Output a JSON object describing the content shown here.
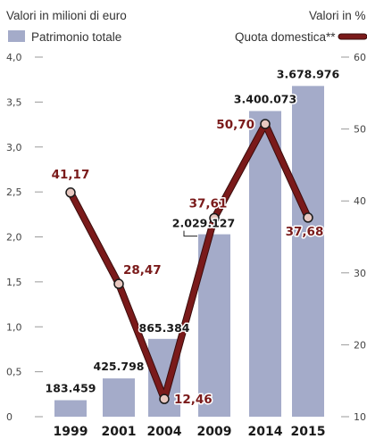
{
  "header": {
    "left_unit": "Valori in milioni di euro",
    "right_unit": "Valori in %"
  },
  "legend": {
    "bar_label": "Patrimonio totale",
    "line_label": "Quota domestica**"
  },
  "colors": {
    "bar": "#a4abc9",
    "line": "#7a1a1a",
    "line_outline": "#3a0c0c",
    "point_fill": "#e8c8c0",
    "line_label": "#7a1a1a"
  },
  "chart_data": {
    "type": "bar+line",
    "categories": [
      "1999",
      "2001",
      "2004",
      "2009",
      "2014",
      "2015"
    ],
    "left_axis": {
      "min": 0,
      "max": 4.0,
      "ticks": [
        0,
        0.5,
        1.0,
        1.5,
        2.0,
        2.5,
        3.0,
        3.5,
        4.0
      ],
      "tick_labels": [
        "0",
        "0,5",
        "1,0",
        "1,5",
        "2,0",
        "2,5",
        "3,0",
        "3,5",
        "4,0"
      ]
    },
    "right_axis": {
      "min": 10,
      "max": 60,
      "ticks": [
        10,
        20,
        30,
        40,
        50,
        60
      ],
      "tick_labels": [
        "10",
        "20",
        "30",
        "40",
        "50",
        "60"
      ]
    },
    "series": [
      {
        "name": "Patrimonio totale",
        "kind": "bar",
        "axis": "left",
        "values": [
          0.183459,
          0.425798,
          0.865384,
          2.029127,
          3.400073,
          3.678976
        ],
        "labels": [
          "183.459",
          "425.798",
          "865.384",
          "2.029.127",
          "3.400.073",
          "3.678.976"
        ]
      },
      {
        "name": "Quota domestica**",
        "kind": "line",
        "axis": "right",
        "values": [
          41.17,
          28.47,
          12.46,
          37.61,
          50.7,
          37.68
        ],
        "labels": [
          "41,17",
          "28,47",
          "12,46",
          "37,61",
          "50,70",
          "37,68"
        ]
      }
    ]
  }
}
